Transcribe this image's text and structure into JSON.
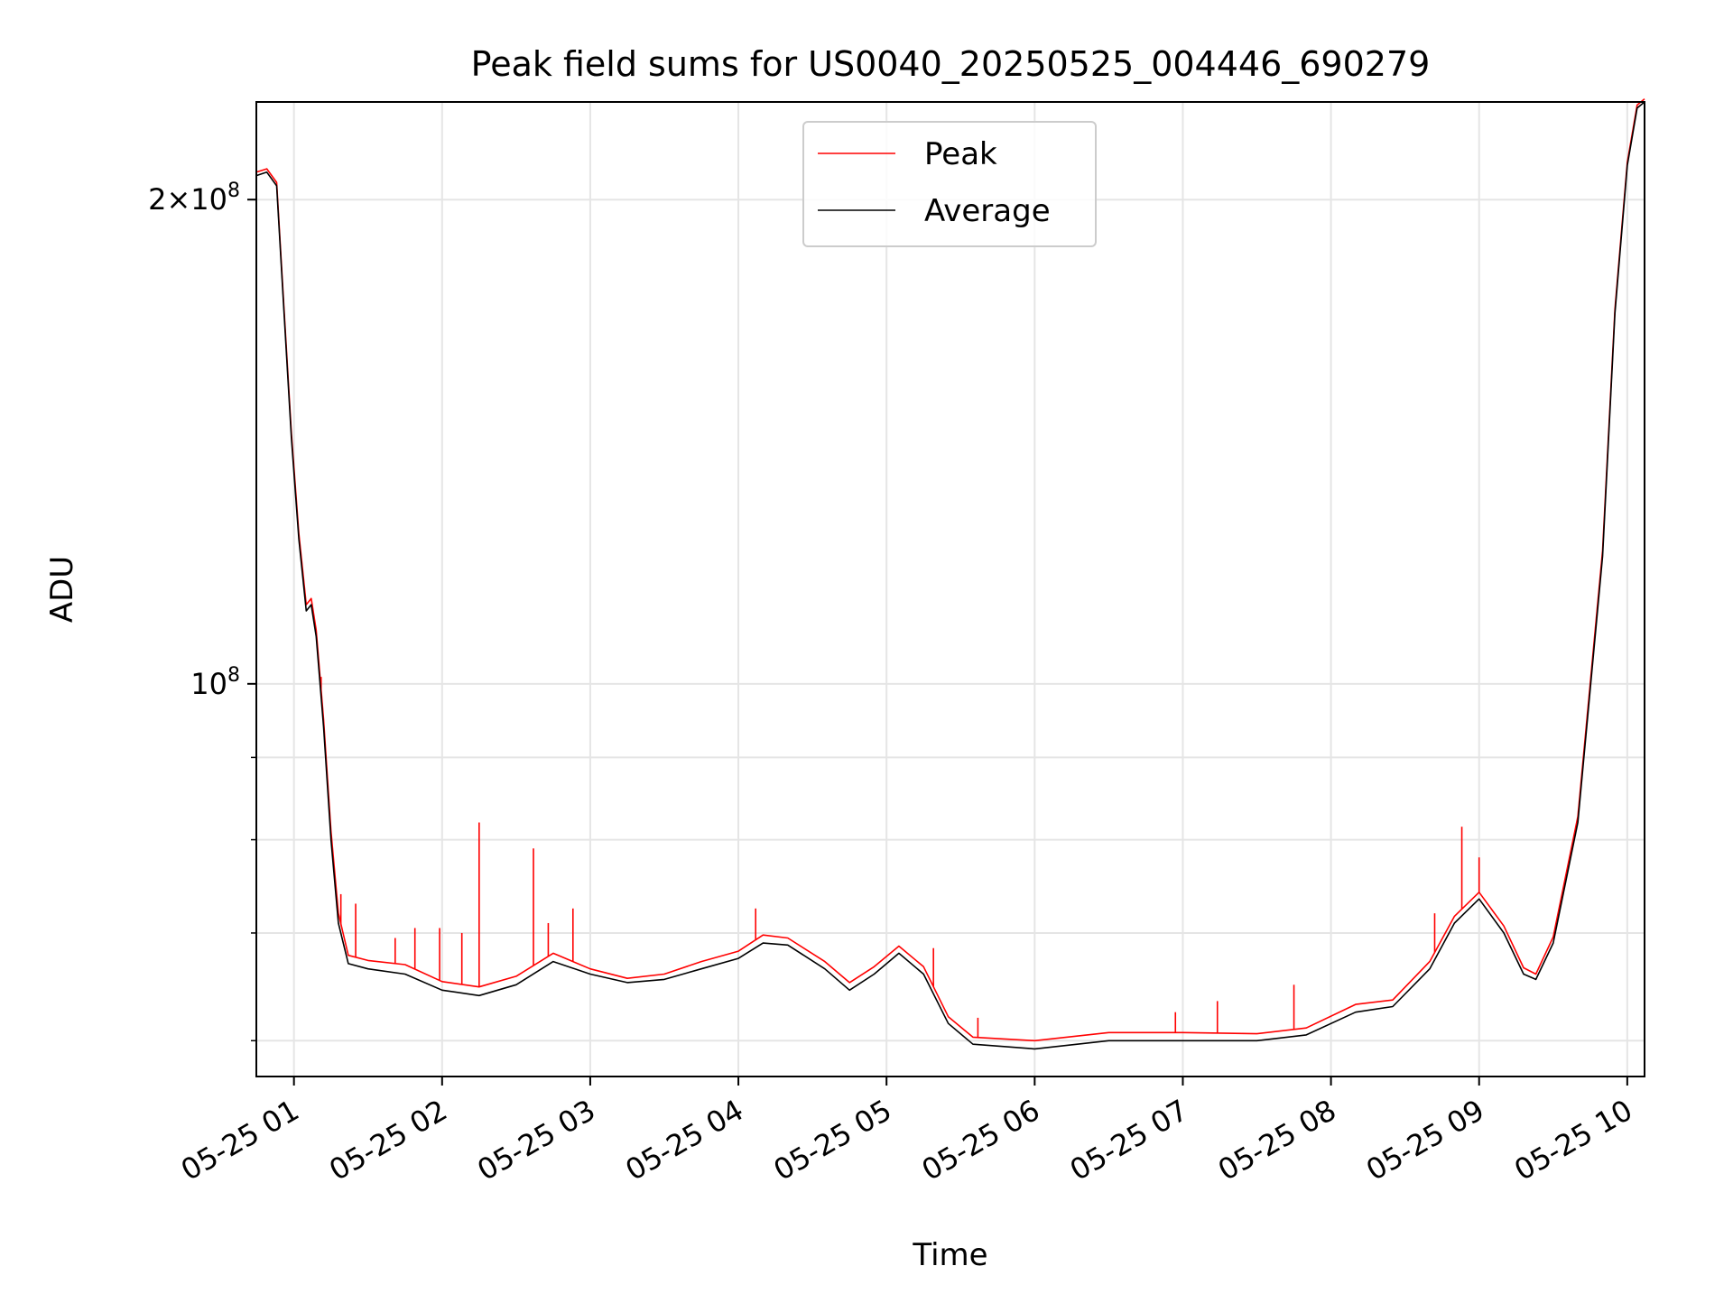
{
  "chart_data": {
    "type": "line",
    "title": "Peak field sums for US0040_20250525_004446_690279",
    "xlabel": "Time",
    "ylabel": "ADU",
    "x_ticks": [
      "05-25 01",
      "05-25 02",
      "05-25 03",
      "05-25 04",
      "05-25 05",
      "05-25 06",
      "05-25 07",
      "05-25 08",
      "05-25 09",
      "05-25 10"
    ],
    "y_ticks": [
      {
        "value": 100000000,
        "mantissa": "",
        "exponent": "8"
      },
      {
        "value": 200000000,
        "mantissa": "2×",
        "exponent": "8"
      }
    ],
    "y_scale": "log",
    "ylim": [
      57000000,
      230000000
    ],
    "xlim": [
      "2025-05-25 00:44:46",
      "2025-05-25 10:07:00"
    ],
    "grid": true,
    "legend": {
      "position": "upper center",
      "entries": [
        {
          "label": "Peak",
          "color": "#ff0000"
        },
        {
          "label": "Average",
          "color": "#000000"
        }
      ]
    },
    "series": [
      {
        "name": "Average",
        "color": "#000000",
        "points": [
          [
            "2025-05-25 00:44:46",
            207000000
          ],
          [
            "2025-05-25 00:49:00",
            208000000
          ],
          [
            "2025-05-25 00:53:00",
            204000000
          ],
          [
            "2025-05-25 00:56:00",
            170000000
          ],
          [
            "2025-05-25 00:59:00",
            142000000
          ],
          [
            "2025-05-25 01:02:00",
            123000000
          ],
          [
            "2025-05-25 01:05:00",
            111000000
          ],
          [
            "2025-05-25 01:07:00",
            112000000
          ],
          [
            "2025-05-25 01:09:00",
            107000000
          ],
          [
            "2025-05-25 01:12:00",
            94000000
          ],
          [
            "2025-05-25 01:15:00",
            80000000
          ],
          [
            "2025-05-25 01:18:00",
            71000000
          ],
          [
            "2025-05-25 01:22:00",
            67000000
          ],
          [
            "2025-05-25 01:30:00",
            66500000
          ],
          [
            "2025-05-25 01:45:00",
            66000000
          ],
          [
            "2025-05-25 02:00:00",
            64500000
          ],
          [
            "2025-05-25 02:15:00",
            64000000
          ],
          [
            "2025-05-25 02:30:00",
            65000000
          ],
          [
            "2025-05-25 02:45:00",
            67200000
          ],
          [
            "2025-05-25 03:00:00",
            66000000
          ],
          [
            "2025-05-25 03:15:00",
            65200000
          ],
          [
            "2025-05-25 03:30:00",
            65500000
          ],
          [
            "2025-05-25 03:45:00",
            66500000
          ],
          [
            "2025-05-25 04:00:00",
            67500000
          ],
          [
            "2025-05-25 04:10:00",
            69000000
          ],
          [
            "2025-05-25 04:20:00",
            68800000
          ],
          [
            "2025-05-25 04:35:00",
            66500000
          ],
          [
            "2025-05-25 04:45:00",
            64500000
          ],
          [
            "2025-05-25 04:55:00",
            66000000
          ],
          [
            "2025-05-25 05:05:00",
            68000000
          ],
          [
            "2025-05-25 05:15:00",
            66000000
          ],
          [
            "2025-05-25 05:25:00",
            61500000
          ],
          [
            "2025-05-25 05:35:00",
            59700000
          ],
          [
            "2025-05-25 06:00:00",
            59300000
          ],
          [
            "2025-05-25 06:30:00",
            60000000
          ],
          [
            "2025-05-25 07:00:00",
            60000000
          ],
          [
            "2025-05-25 07:30:00",
            60000000
          ],
          [
            "2025-05-25 07:50:00",
            60500000
          ],
          [
            "2025-05-25 08:10:00",
            62500000
          ],
          [
            "2025-05-25 08:25:00",
            63000000
          ],
          [
            "2025-05-25 08:40:00",
            66500000
          ],
          [
            "2025-05-25 08:50:00",
            71000000
          ],
          [
            "2025-05-25 09:00:00",
            73500000
          ],
          [
            "2025-05-25 09:10:00",
            70000000
          ],
          [
            "2025-05-25 09:18:00",
            66000000
          ],
          [
            "2025-05-25 09:23:00",
            65500000
          ],
          [
            "2025-05-25 09:30:00",
            69000000
          ],
          [
            "2025-05-25 09:40:00",
            82000000
          ],
          [
            "2025-05-25 09:50:00",
            120000000
          ],
          [
            "2025-05-25 09:55:00",
            170000000
          ],
          [
            "2025-05-25 10:00:00",
            210000000
          ],
          [
            "2025-05-25 10:04:00",
            228000000
          ],
          [
            "2025-05-25 10:07:00",
            230000000
          ]
        ]
      },
      {
        "name": "Peak",
        "color": "#ff0000",
        "points": [
          [
            "2025-05-25 00:44:46",
            208000000
          ],
          [
            "2025-05-25 00:49:00",
            209000000
          ],
          [
            "2025-05-25 00:53:00",
            205000000
          ],
          [
            "2025-05-25 00:56:00",
            171000000
          ],
          [
            "2025-05-25 00:59:00",
            143000000
          ],
          [
            "2025-05-25 01:02:00",
            124000000
          ],
          [
            "2025-05-25 01:05:00",
            112000000
          ],
          [
            "2025-05-25 01:07:00",
            113000000
          ],
          [
            "2025-05-25 01:09:00",
            108000000
          ],
          [
            "2025-05-25 01:12:00",
            95000000
          ],
          [
            "2025-05-25 01:15:00",
            81000000
          ],
          [
            "2025-05-25 01:18:00",
            72000000
          ],
          [
            "2025-05-25 01:22:00",
            67800000
          ],
          [
            "2025-05-25 01:30:00",
            67300000
          ],
          [
            "2025-05-25 01:45:00",
            66900000
          ],
          [
            "2025-05-25 02:00:00",
            65300000
          ],
          [
            "2025-05-25 02:15:00",
            64800000
          ],
          [
            "2025-05-25 02:30:00",
            65800000
          ],
          [
            "2025-05-25 02:45:00",
            68000000
          ],
          [
            "2025-05-25 03:00:00",
            66500000
          ],
          [
            "2025-05-25 03:15:00",
            65600000
          ],
          [
            "2025-05-25 03:30:00",
            66000000
          ],
          [
            "2025-05-25 03:45:00",
            67200000
          ],
          [
            "2025-05-25 04:00:00",
            68200000
          ],
          [
            "2025-05-25 04:10:00",
            69800000
          ],
          [
            "2025-05-25 04:20:00",
            69500000
          ],
          [
            "2025-05-25 04:35:00",
            67200000
          ],
          [
            "2025-05-25 04:45:00",
            65200000
          ],
          [
            "2025-05-25 04:55:00",
            66700000
          ],
          [
            "2025-05-25 05:05:00",
            68700000
          ],
          [
            "2025-05-25 05:15:00",
            66700000
          ],
          [
            "2025-05-25 05:25:00",
            62100000
          ],
          [
            "2025-05-25 05:35:00",
            60300000
          ],
          [
            "2025-05-25 06:00:00",
            60000000
          ],
          [
            "2025-05-25 06:30:00",
            60700000
          ],
          [
            "2025-05-25 07:00:00",
            60700000
          ],
          [
            "2025-05-25 07:30:00",
            60600000
          ],
          [
            "2025-05-25 07:50:00",
            61100000
          ],
          [
            "2025-05-25 08:10:00",
            63200000
          ],
          [
            "2025-05-25 08:25:00",
            63600000
          ],
          [
            "2025-05-25 08:40:00",
            67200000
          ],
          [
            "2025-05-25 08:50:00",
            71700000
          ],
          [
            "2025-05-25 09:00:00",
            74200000
          ],
          [
            "2025-05-25 09:10:00",
            70700000
          ],
          [
            "2025-05-25 09:18:00",
            66600000
          ],
          [
            "2025-05-25 09:23:00",
            66000000
          ],
          [
            "2025-05-25 09:30:00",
            69600000
          ],
          [
            "2025-05-25 09:40:00",
            82700000
          ],
          [
            "2025-05-25 09:50:00",
            121000000
          ],
          [
            "2025-05-25 09:55:00",
            171000000
          ],
          [
            "2025-05-25 10:00:00",
            211000000
          ],
          [
            "2025-05-25 10:04:00",
            229000000
          ],
          [
            "2025-05-25 10:07:00",
            231000000
          ]
        ]
      }
    ],
    "peak_spikes": [
      [
        "2025-05-25 01:11:00",
        101000000
      ],
      [
        "2025-05-25 01:19:00",
        74000000
      ],
      [
        "2025-05-25 01:25:00",
        73000000
      ],
      [
        "2025-05-25 01:41:00",
        69500000
      ],
      [
        "2025-05-25 01:49:00",
        70500000
      ],
      [
        "2025-05-25 01:59:00",
        70500000
      ],
      [
        "2025-05-25 02:08:00",
        70000000
      ],
      [
        "2025-05-25 02:15:00",
        82000000
      ],
      [
        "2025-05-25 02:37:00",
        79000000
      ],
      [
        "2025-05-25 02:43:00",
        71000000
      ],
      [
        "2025-05-25 02:53:00",
        72500000
      ],
      [
        "2025-05-25 04:07:00",
        72500000
      ],
      [
        "2025-05-25 05:19:00",
        68500000
      ],
      [
        "2025-05-25 05:37:00",
        62000000
      ],
      [
        "2025-05-25 06:57:00",
        62500000
      ],
      [
        "2025-05-25 07:14:00",
        63500000
      ],
      [
        "2025-05-25 07:45:00",
        65000000
      ],
      [
        "2025-05-25 08:42:00",
        72000000
      ],
      [
        "2025-05-25 08:53:00",
        81500000
      ],
      [
        "2025-05-25 09:00:00",
        78000000
      ]
    ]
  }
}
